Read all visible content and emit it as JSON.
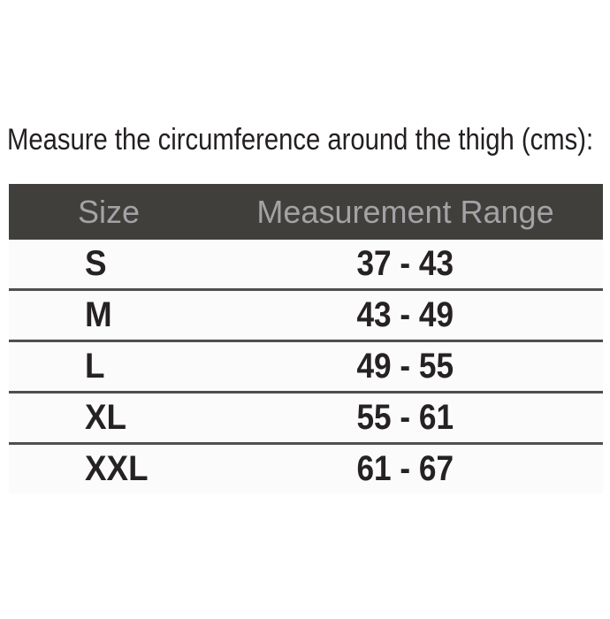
{
  "title": "Measure the circumference around the thigh (cms):",
  "size_table": {
    "columns": {
      "size": "Size",
      "range": "Measurement Range"
    },
    "rows": [
      {
        "size": "S",
        "range": "37 - 43"
      },
      {
        "size": "M",
        "range": "43 - 49"
      },
      {
        "size": "L",
        "range": "49 - 55"
      },
      {
        "size": "XL",
        "range": "55 - 61"
      },
      {
        "size": "XXL",
        "range": "61 - 67"
      }
    ],
    "unit": "cms"
  },
  "colors": {
    "page_bg": "#ffffff",
    "header_bg": "#413f3b",
    "header_text": "#a3a2a6",
    "body_text": "#262223",
    "title_text": "#231f20",
    "divider": "#4f4f4f",
    "row_bg": "#fbfbfb"
  }
}
